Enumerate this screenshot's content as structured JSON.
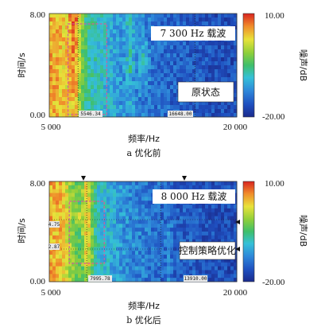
{
  "chart_data": [
    {
      "type": "heatmap",
      "panel": "a",
      "caption": "a   优化前",
      "xlabel": "频率/Hz",
      "ylabel": "时间/s",
      "colorbar_label": "噪声/dB",
      "x_ticks": [
        "5 000",
        "20 000"
      ],
      "y_ticks": [
        "8.00",
        "0.00"
      ],
      "colorbar_ticks": [
        "10.00",
        "-20.00"
      ],
      "xlim": [
        5000,
        20000
      ],
      "ylim": [
        0,
        8
      ],
      "clim": [
        -20,
        10
      ],
      "annotations": [
        "7 300 Hz 载波",
        "原状态"
      ],
      "cursor_readouts": [
        "5546.34",
        "16648.00"
      ],
      "carrier_hz": 7300
    },
    {
      "type": "heatmap",
      "panel": "b",
      "caption": "b   优化后",
      "xlabel": "频率/Hz",
      "ylabel": "时间/s",
      "colorbar_label": "噪声/dB",
      "x_ticks": [
        "5 000",
        "20 000"
      ],
      "y_ticks": [
        "8.00",
        "0.00"
      ],
      "colorbar_ticks": [
        "10.00",
        "-20.00"
      ],
      "xlim": [
        5000,
        20000
      ],
      "ylim": [
        0,
        8
      ],
      "clim": [
        -20,
        10
      ],
      "annotations": [
        "8 000 Hz 载波",
        "控制策略优化"
      ],
      "cursor_readouts": [
        "7995.78",
        "13910.00"
      ],
      "side_readouts": [
        "4.75",
        "2.87"
      ],
      "carrier_hz": 8000
    }
  ],
  "colors": {
    "background": "#ffffff",
    "cmap": [
      "#1a2a8c",
      "#1f4fbf",
      "#2e86d9",
      "#35c0d8",
      "#3fbf6b",
      "#8fcf3a",
      "#e8e23a",
      "#f08a2a",
      "#d8241f"
    ],
    "rect": "#d45aa0"
  }
}
